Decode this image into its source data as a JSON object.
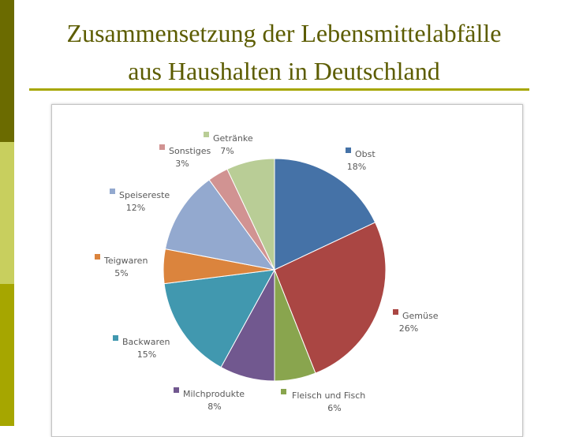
{
  "slide": {
    "title_line1": "Zusammensetzung der Lebensmittelabfälle",
    "title_line2": "aus Haushalten in Deutschland"
  },
  "chart_data": {
    "type": "pie",
    "title": "",
    "start_angle_deg": 0,
    "direction": "clockwise",
    "slices": [
      {
        "label": "Obst",
        "value": 18,
        "display": "18%",
        "color": "#4572a7"
      },
      {
        "label": "Gemüse",
        "value": 26,
        "display": "26%",
        "color": "#aa4643"
      },
      {
        "label": "Fleisch und Fisch",
        "value": 6,
        "display": "6%",
        "color": "#89a54e"
      },
      {
        "label": "Milchprodukte",
        "value": 8,
        "display": "8%",
        "color": "#71588f"
      },
      {
        "label": "Backwaren",
        "value": 15,
        "display": "15%",
        "color": "#4198af"
      },
      {
        "label": "Teigwaren",
        "value": 5,
        "display": "5%",
        "color": "#db843d"
      },
      {
        "label": "Speisereste",
        "value": 12,
        "display": "12%",
        "color": "#93a9cf"
      },
      {
        "label": "Sonstiges",
        "value": 3,
        "display": "3%",
        "color": "#d19392"
      },
      {
        "label": "Getränke",
        "value": 7,
        "display": "7%",
        "color": "#b9cd96"
      }
    ]
  }
}
